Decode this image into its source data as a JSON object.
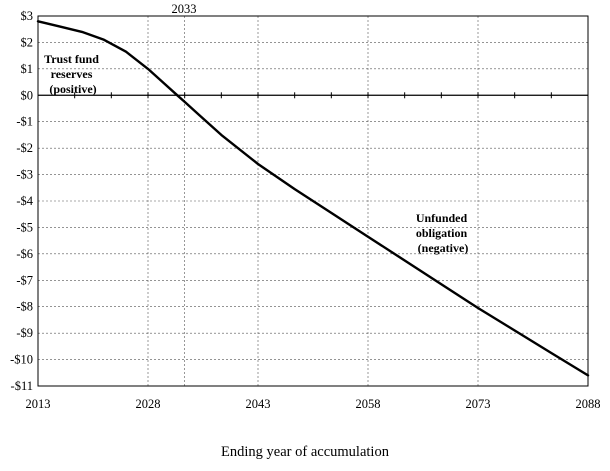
{
  "chart_data": {
    "type": "line",
    "title": "",
    "xlabel": "Ending year of accumulation",
    "ylabel": "",
    "xlim": [
      2013,
      2088
    ],
    "ylim": [
      -11,
      3
    ],
    "x_ticks": [
      2013,
      2028,
      2043,
      2058,
      2073,
      2088
    ],
    "x_tick_labels": [
      "2013",
      "2028",
      "2043",
      "2058",
      "2073",
      "2088"
    ],
    "y_ticks": [
      3,
      2,
      1,
      0,
      -1,
      -2,
      -3,
      -4,
      -5,
      -6,
      -7,
      -8,
      -9,
      -10,
      -11
    ],
    "y_tick_labels": [
      "$3",
      "$2",
      "$1",
      "$0",
      "-$1",
      "-$2",
      "-$3",
      "-$4",
      "-$5",
      "-$6",
      "-$7",
      "-$8",
      "-$9",
      "-$10",
      "-$11"
    ],
    "extra_gridline": {
      "x": 2033,
      "label": "2033"
    },
    "grid": true,
    "series": [
      {
        "x": [
          2013,
          2016,
          2019,
          2022,
          2025,
          2028,
          2030,
          2032,
          2033,
          2035,
          2038,
          2043,
          2048,
          2053,
          2058,
          2063,
          2068,
          2073,
          2078,
          2083,
          2088
        ],
        "values": [
          2.8,
          2.6,
          2.4,
          2.1,
          1.65,
          1.0,
          0.5,
          0.0,
          -0.25,
          -0.75,
          -1.5,
          -2.6,
          -3.55,
          -4.45,
          -5.35,
          -6.25,
          -7.15,
          -8.05,
          -8.9,
          -9.75,
          -10.6
        ]
      }
    ],
    "annotations": [
      {
        "lines": [
          "Trust fund",
          "reserves",
          "(positive)"
        ]
      },
      {
        "lines": [
          "Unfunded",
          "obligation",
          "(negative)"
        ]
      }
    ]
  }
}
